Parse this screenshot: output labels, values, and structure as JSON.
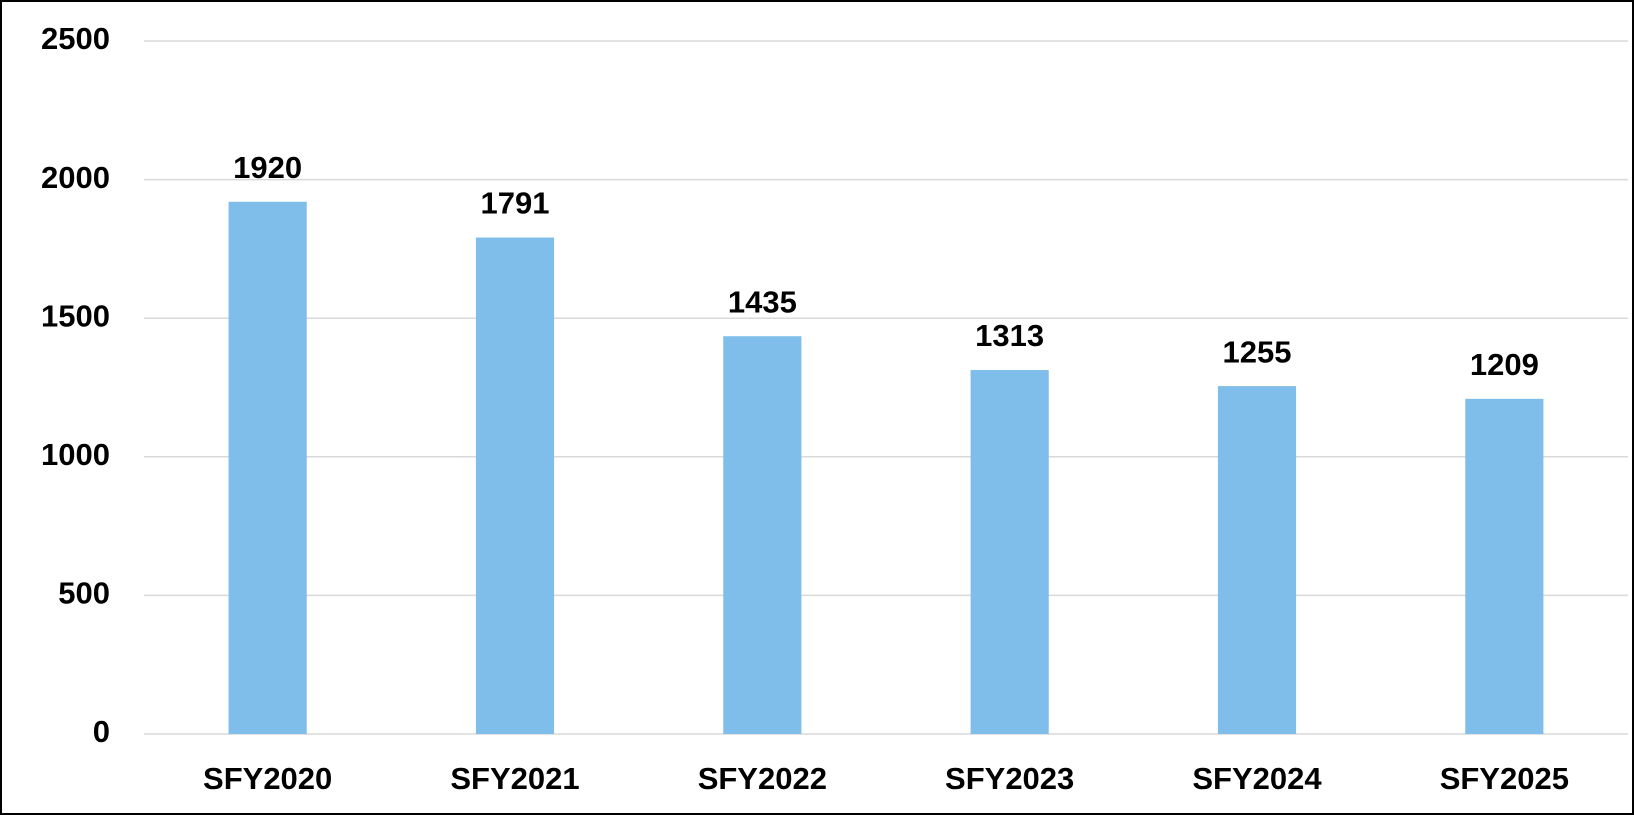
{
  "chart_data": {
    "type": "bar",
    "categories": [
      "SFY2020",
      "SFY2021",
      "SFY2022",
      "SFY2023",
      "SFY2024",
      "SFY2025"
    ],
    "values": [
      1920,
      1791,
      1435,
      1313,
      1255,
      1209
    ],
    "color": "#7fbdea",
    "ylim": [
      0,
      2500
    ],
    "yticks": [
      0,
      500,
      1000,
      1500,
      2000,
      2500
    ],
    "grid": true
  }
}
